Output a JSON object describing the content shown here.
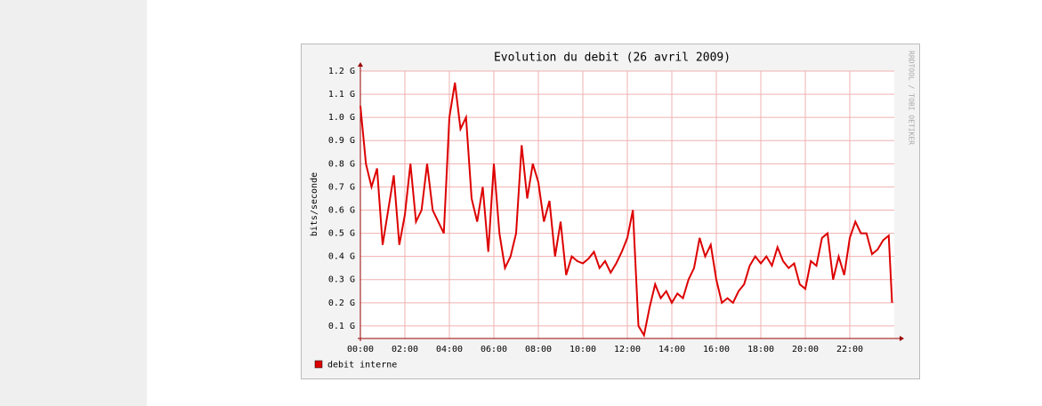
{
  "chart_data": {
    "type": "line",
    "title": "Evolution du debit (26 avril 2009)",
    "y_label": "bits/seconde",
    "watermark": "RRDTOOL / TOBI OETIKER",
    "x": [
      0,
      0.25,
      0.5,
      0.75,
      1,
      1.25,
      1.5,
      1.75,
      2,
      2.25,
      2.5,
      2.75,
      3,
      3.25,
      3.5,
      3.75,
      4,
      4.25,
      4.5,
      4.75,
      5,
      5.25,
      5.5,
      5.75,
      6,
      6.25,
      6.5,
      6.75,
      7,
      7.25,
      7.5,
      7.75,
      8,
      8.25,
      8.5,
      8.75,
      9,
      9.25,
      9.5,
      9.75,
      10,
      10.25,
      10.5,
      10.75,
      11,
      11.25,
      11.5,
      11.75,
      12,
      12.25,
      12.5,
      12.75,
      13,
      13.25,
      13.5,
      13.75,
      14,
      14.25,
      14.5,
      14.75,
      15,
      15.25,
      15.5,
      15.75,
      16,
      16.25,
      16.5,
      16.75,
      17,
      17.25,
      17.5,
      17.75,
      18,
      18.25,
      18.5,
      18.75,
      19,
      19.25,
      19.5,
      19.75,
      20,
      20.25,
      20.5,
      20.75,
      21,
      21.25,
      21.5,
      21.75,
      22,
      22.25,
      22.5,
      22.75,
      23,
      23.25,
      23.5,
      23.75,
      23.9
    ],
    "series": [
      {
        "name": "debit interne",
        "color": "#dd0000",
        "values": [
          1.05,
          0.8,
          0.7,
          0.78,
          0.45,
          0.6,
          0.75,
          0.45,
          0.58,
          0.8,
          0.55,
          0.6,
          0.8,
          0.6,
          0.55,
          0.5,
          1.0,
          1.15,
          0.95,
          1.0,
          0.65,
          0.55,
          0.7,
          0.42,
          0.8,
          0.5,
          0.35,
          0.4,
          0.5,
          0.88,
          0.65,
          0.8,
          0.72,
          0.55,
          0.64,
          0.4,
          0.55,
          0.32,
          0.4,
          0.38,
          0.37,
          0.39,
          0.42,
          0.35,
          0.38,
          0.33,
          0.37,
          0.42,
          0.48,
          0.6,
          0.1,
          0.06,
          0.18,
          0.28,
          0.22,
          0.25,
          0.2,
          0.24,
          0.22,
          0.3,
          0.35,
          0.48,
          0.4,
          0.45,
          0.3,
          0.2,
          0.22,
          0.2,
          0.25,
          0.28,
          0.36,
          0.4,
          0.37,
          0.4,
          0.36,
          0.44,
          0.38,
          0.35,
          0.37,
          0.28,
          0.26,
          0.38,
          0.36,
          0.48,
          0.5,
          0.3,
          0.4,
          0.32,
          0.48,
          0.55,
          0.5,
          0.5,
          0.41,
          0.43,
          0.47,
          0.49,
          0.2
        ]
      }
    ],
    "xlim": [
      0,
      24
    ],
    "xticks": [
      {
        "value": 0,
        "label": "00:00"
      },
      {
        "value": 2,
        "label": "02:00"
      },
      {
        "value": 4,
        "label": "04:00"
      },
      {
        "value": 6,
        "label": "06:00"
      },
      {
        "value": 8,
        "label": "08:00"
      },
      {
        "value": 10,
        "label": "10:00"
      },
      {
        "value": 12,
        "label": "12:00"
      },
      {
        "value": 14,
        "label": "14:00"
      },
      {
        "value": 16,
        "label": "16:00"
      },
      {
        "value": 18,
        "label": "18:00"
      },
      {
        "value": 20,
        "label": "20:00"
      },
      {
        "value": 22,
        "label": "22:00"
      }
    ],
    "ylim": [
      0.046,
      1.2
    ],
    "yticks": [
      {
        "value": 0.1,
        "label": "0.1 G"
      },
      {
        "value": 0.2,
        "label": "0.2 G"
      },
      {
        "value": 0.3,
        "label": "0.3 G"
      },
      {
        "value": 0.4,
        "label": "0.4 G"
      },
      {
        "value": 0.5,
        "label": "0.5 G"
      },
      {
        "value": 0.6,
        "label": "0.6 G"
      },
      {
        "value": 0.7,
        "label": "0.7 G"
      },
      {
        "value": 0.8,
        "label": "0.8 G"
      },
      {
        "value": 0.9,
        "label": "0.9 G"
      },
      {
        "value": 1.0,
        "label": "1.0 G"
      },
      {
        "value": 1.1,
        "label": "1.1 G"
      },
      {
        "value": 1.2,
        "label": "1.2 G"
      }
    ],
    "grid": true
  }
}
